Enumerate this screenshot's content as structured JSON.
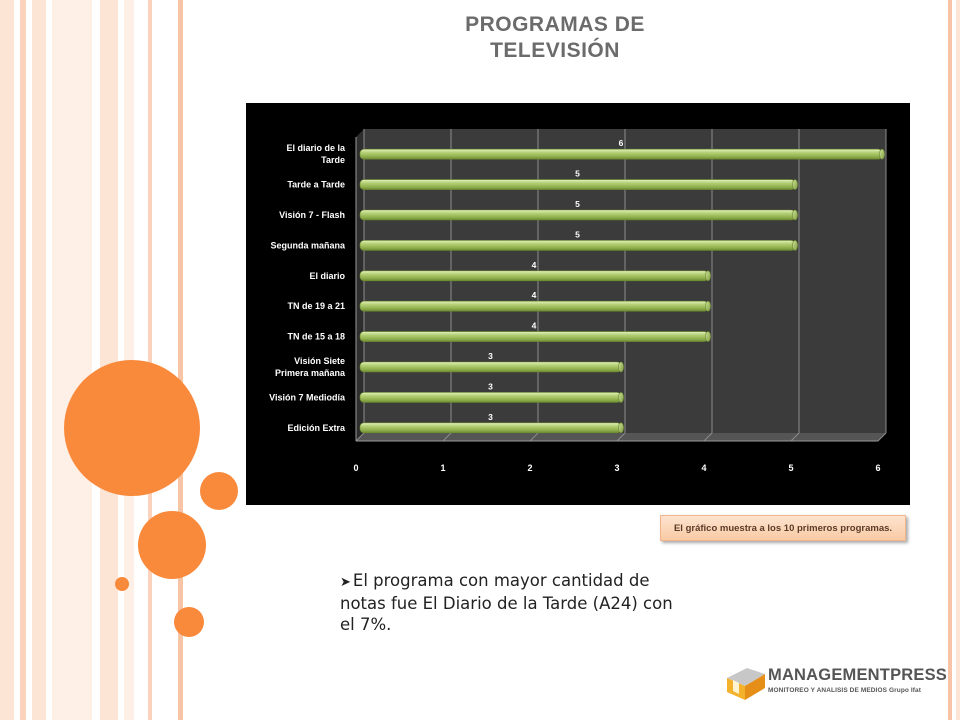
{
  "slide": {
    "title_line1": "PROGRAMAS DE",
    "title_line2": "TELEVISIÓN",
    "callout": "El gráfico muestra a los 10 primeros programas.",
    "bullet_text": "El programa con mayor cantidad de notas fue El Diario de la Tarde (A24) con el 7%."
  },
  "logo": {
    "name": "MANAGEMENTPRESS",
    "tagline": "MONITOREO Y ANALISIS DE MEDIOS Grupo Ifat"
  },
  "colors": {
    "accent_orange": "#f98a3c",
    "bar_green": "#9bbb59",
    "chart_background": "#000000",
    "wall": "#3a3a3a"
  },
  "icons": [
    "bullet-arrow-icon",
    "managementpress-logo-icon"
  ],
  "chart_data": {
    "type": "bar",
    "orientation": "horizontal",
    "categories": [
      "El diario de la Tarde",
      "Tarde a Tarde",
      "Visión 7 - Flash",
      "Segunda mañana",
      "El diario",
      "TN de 19 a 21",
      "TN de 15 a 18",
      "Visión Siete Primera mañana",
      "Visión 7 Mediodía",
      "Edición Extra"
    ],
    "category_label_lines": [
      [
        "El diario de la",
        "Tarde"
      ],
      [
        "Tarde a Tarde"
      ],
      [
        "Visión 7 - Flash"
      ],
      [
        "Segunda mañana"
      ],
      [
        "El diario"
      ],
      [
        "TN de 19 a 21"
      ],
      [
        "TN de 15 a 18"
      ],
      [
        "Visión Siete",
        "Primera mañana"
      ],
      [
        "Visión 7 Mediodía"
      ],
      [
        "Edición Extra"
      ]
    ],
    "values": [
      6,
      5,
      5,
      5,
      4,
      4,
      4,
      3,
      3,
      3
    ],
    "data_labels": [
      "6",
      "5",
      "5",
      "5",
      "4",
      "4",
      "4",
      "3",
      "3",
      "3"
    ],
    "x_ticks": [
      "0",
      "1",
      "2",
      "3",
      "4",
      "5",
      "6"
    ],
    "xlim": [
      0,
      6
    ],
    "gridlines": true,
    "style": "3d-cylinder",
    "title": "",
    "xlabel": "",
    "ylabel": ""
  }
}
